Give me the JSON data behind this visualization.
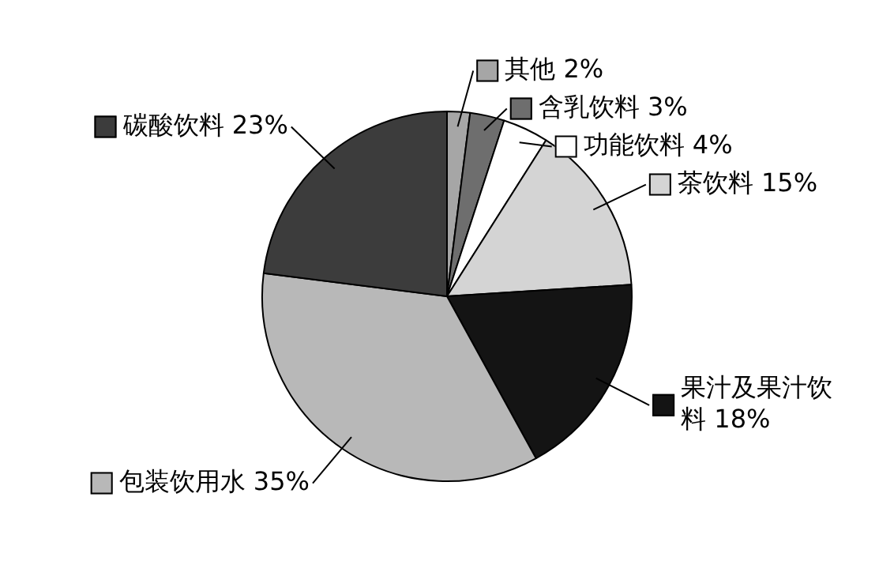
{
  "chart_data": {
    "type": "pie",
    "categories": [
      "其他",
      "含乳饮料",
      "功能饮料",
      "茶饮料",
      "果汁及果汁饮料",
      "包装饮用水",
      "碳酸饮料"
    ],
    "values": [
      2,
      3,
      4,
      15,
      18,
      35,
      23
    ],
    "value_labels": [
      "2%",
      "3%",
      "4%",
      "15%",
      "18%",
      "35%",
      "23%"
    ],
    "colors": [
      "#a6a6a6",
      "#6e6e6e",
      "#ffffff",
      "#d4d4d4",
      "#141414",
      "#b8b8b8",
      "#3c3c3c"
    ],
    "legend": "right"
  }
}
